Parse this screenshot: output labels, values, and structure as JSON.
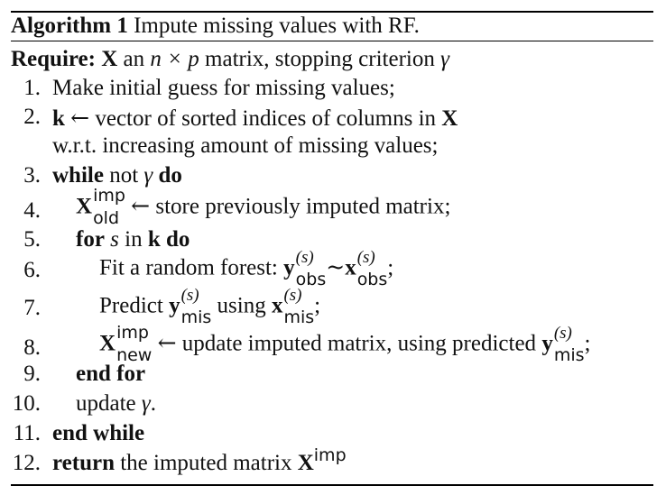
{
  "algorithm": {
    "label": "Algorithm 1",
    "title": "Impute missing values with RF.",
    "require": {
      "keyword": "Require:",
      "X": "X",
      "text1": "an",
      "dims": "n × p",
      "text2": "matrix, stopping criterion",
      "gamma": "γ"
    },
    "lines": {
      "l1": {
        "num": "1.",
        "text": "Make initial guess for missing values;"
      },
      "l2": {
        "num": "2.",
        "k": "k",
        "arrow": "←",
        "text": "vector of sorted indices of columns in",
        "X": "X",
        "cont": "w.r.t. increasing amount of missing values;"
      },
      "l3": {
        "num": "3.",
        "kw1": "while",
        "text": "not",
        "gamma": "γ",
        "kw2": "do"
      },
      "l4": {
        "num": "4.",
        "X": "X",
        "sup": "imp",
        "sub": "old",
        "arrow": "←",
        "text": "store previously imputed matrix;"
      },
      "l5": {
        "num": "5.",
        "kw1": "for",
        "s": "s",
        "text": "in",
        "k": "k",
        "kw2": "do"
      },
      "l6": {
        "num": "6.",
        "text": "Fit a random forest:",
        "y": "y",
        "sup": "(s)",
        "sub": "obs",
        "tilde": "~",
        "x": "x",
        "sub2": "obs",
        "end": ";"
      },
      "l7": {
        "num": "7.",
        "text": "Predict",
        "y": "y",
        "sup": "(s)",
        "sub": "mis",
        "text2": "using",
        "x": "x",
        "sub2": "mis",
        "end": ";"
      },
      "l8": {
        "num": "8.",
        "X": "X",
        "sup": "imp",
        "sub": "new",
        "arrow": "←",
        "text": "update imputed matrix, using predicted",
        "y": "y",
        "ysup": "(s)",
        "ysub": "mis",
        "end": ";"
      },
      "l9": {
        "num": "9.",
        "kw": "end for"
      },
      "l10": {
        "num": "10.",
        "text": "update",
        "gamma": "γ",
        "end": "."
      },
      "l11": {
        "num": "11.",
        "kw": "end while"
      },
      "l12": {
        "num": "12.",
        "kw": "return",
        "text": "the imputed matrix",
        "X": "X",
        "sup": "imp"
      }
    }
  }
}
